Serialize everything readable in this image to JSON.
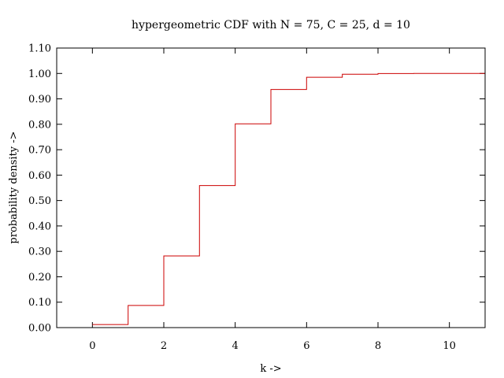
{
  "chart_data": {
    "type": "line",
    "style": "step",
    "title": "hypergeometric CDF with N = 75, C = 25, d = 10",
    "xlabel": "k ->",
    "ylabel": "probability density ->",
    "xlim": [
      -1,
      11
    ],
    "ylim": [
      0,
      1.1
    ],
    "xticks": [
      0,
      2,
      4,
      6,
      8,
      10
    ],
    "yticks": [
      0,
      0.1,
      0.2,
      0.3,
      0.4,
      0.5,
      0.6,
      0.7,
      0.8,
      0.9,
      1.0,
      1.1
    ],
    "xtick_labels": [
      "0",
      "2",
      "4",
      "6",
      "8",
      "10"
    ],
    "ytick_labels": [
      "0.00",
      "0.10",
      "0.20",
      "0.30",
      "0.40",
      "0.50",
      "0.60",
      "0.70",
      "0.80",
      "0.90",
      "1.00",
      "1.10"
    ],
    "grid": false,
    "legend": "none",
    "series": [
      {
        "color": "#cc0000",
        "x": [
          0,
          1,
          2,
          3,
          4,
          5,
          6,
          7,
          8,
          9,
          10
        ],
        "y": [
          0.012,
          0.087,
          0.282,
          0.559,
          0.802,
          0.937,
          0.985,
          0.997,
          0.9995,
          1.0,
          1.0
        ]
      }
    ]
  }
}
